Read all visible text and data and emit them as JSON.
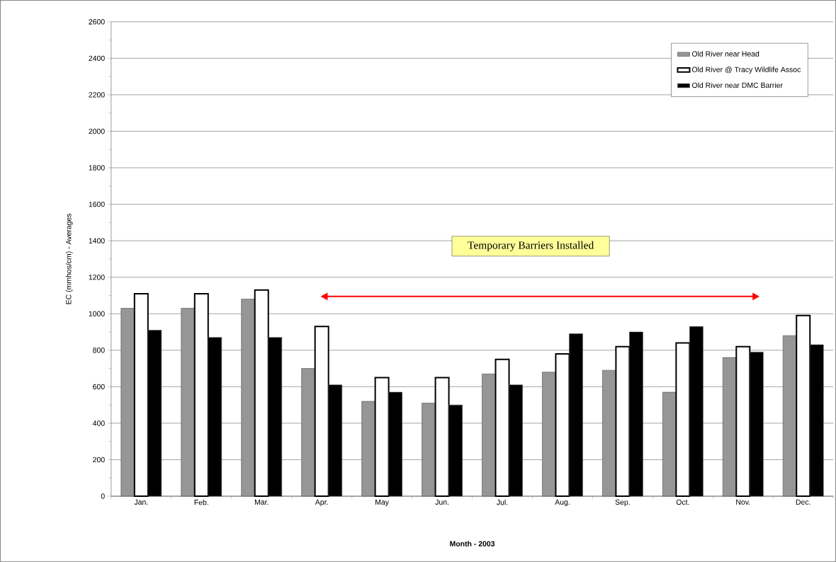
{
  "chart_data": {
    "type": "bar",
    "xlabel": "Month - 2003",
    "ylabel": "EC (mmhos/cm) - Averages",
    "categories": [
      "Jan.",
      "Feb.",
      "Mar.",
      "Apr.",
      "May",
      "Jun.",
      "Jul.",
      "Aug.",
      "Sep.",
      "Oct.",
      "Nov.",
      "Dec."
    ],
    "series": [
      {
        "name": "Old River near Head",
        "color": "#969696",
        "values": [
          1030,
          1030,
          1080,
          700,
          520,
          510,
          670,
          680,
          690,
          570,
          760,
          880
        ]
      },
      {
        "name": "Old River @ Tracy Wildlife Assoc",
        "color": "#ffffff",
        "values": [
          1110,
          1110,
          1130,
          930,
          650,
          650,
          750,
          780,
          820,
          840,
          820,
          990
        ]
      },
      {
        "name": "Old River near DMC Barrier",
        "color": "#000000",
        "values": [
          910,
          870,
          870,
          610,
          570,
          500,
          610,
          890,
          900,
          930,
          790,
          830
        ]
      }
    ],
    "ylim": [
      0,
      2600
    ],
    "yticks": [
      0,
      200,
      400,
      600,
      800,
      1000,
      1200,
      1400,
      1600,
      1800,
      2000,
      2200,
      2400,
      2600
    ],
    "grid": "y",
    "legend": "top right",
    "annotations": [
      "Temporary Barriers Installed"
    ]
  }
}
